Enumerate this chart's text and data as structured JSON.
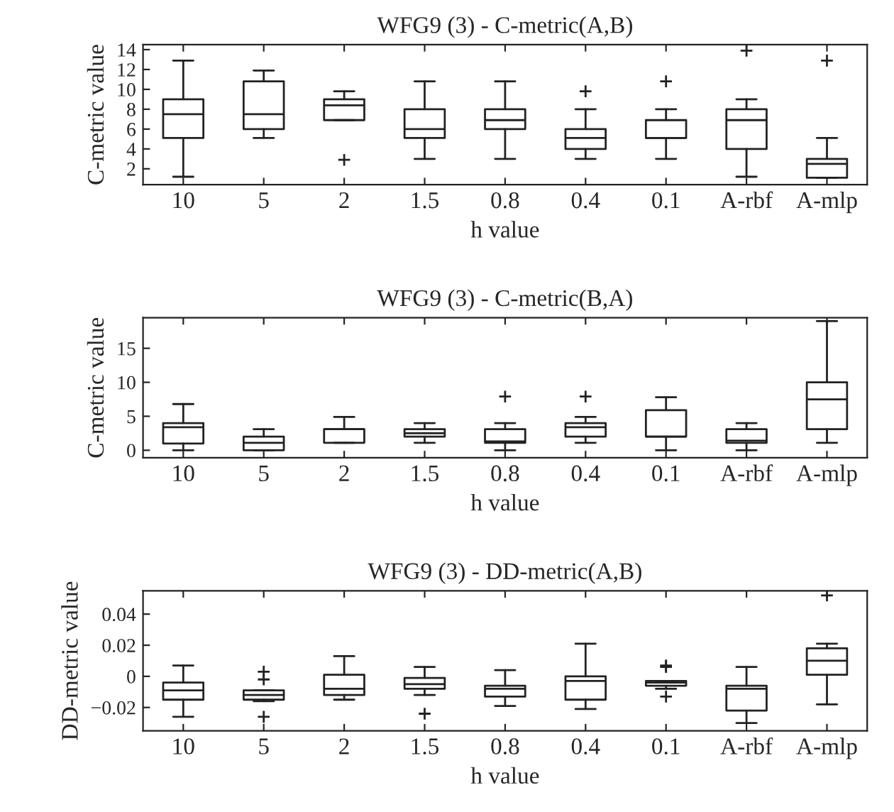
{
  "chart_data": [
    {
      "type": "box",
      "title": "WFG9 (3) - C-metric(A,B)",
      "xlabel": "h value",
      "ylabel": "C-metric value",
      "categories": [
        "10",
        "5",
        "2",
        "1.5",
        "0.8",
        "0.4",
        "0.1",
        "A-rbf",
        "A-mlp"
      ],
      "ylim": [
        0.4,
        14.5
      ],
      "yticks": [
        2,
        4,
        6,
        8,
        10,
        12,
        14
      ],
      "grid": false,
      "legend": false,
      "boxes": [
        {
          "low": 1.2,
          "q1": 5.1,
          "median": 7.5,
          "q3": 9.0,
          "high": 12.9
        },
        {
          "low": 5.1,
          "q1": 6.0,
          "median": 7.5,
          "q3": 10.8,
          "high": 11.9
        },
        {
          "low": 6.9,
          "q1": 6.9,
          "median": 8.4,
          "q3": 9.0,
          "high": 9.8,
          "outliers": [
            2.9
          ]
        },
        {
          "low": 3.0,
          "q1": 5.1,
          "median": 6.0,
          "q3": 8.0,
          "high": 10.8
        },
        {
          "low": 3.0,
          "q1": 6.0,
          "median": 6.9,
          "q3": 8.0,
          "high": 10.8
        },
        {
          "low": 3.0,
          "q1": 4.0,
          "median": 5.1,
          "q3": 6.0,
          "high": 8.0,
          "outliers": [
            9.8
          ]
        },
        {
          "low": 3.0,
          "q1": 5.1,
          "median": 5.1,
          "q3": 6.9,
          "high": 8.0,
          "outliers": [
            10.8
          ]
        },
        {
          "low": 1.2,
          "q1": 4.0,
          "median": 6.9,
          "q3": 8.0,
          "high": 9.0,
          "outliers": [
            13.9
          ]
        },
        {
          "low": 1.1,
          "q1": 1.1,
          "median": 2.5,
          "q3": 3.0,
          "high": 5.1,
          "outliers": [
            12.9
          ]
        }
      ]
    },
    {
      "type": "box",
      "title": "WFG9 (3) - C-metric(B,A)",
      "xlabel": "h value",
      "ylabel": "C-metric value",
      "categories": [
        "10",
        "5",
        "2",
        "1.5",
        "0.8",
        "0.4",
        "0.1",
        "A-rbf",
        "A-mlp"
      ],
      "ylim": [
        -1.1,
        19.5
      ],
      "yticks": [
        0,
        5,
        10,
        15
      ],
      "grid": false,
      "legend": false,
      "boxes": [
        {
          "low": 0,
          "q1": 1.0,
          "median": 3.4,
          "q3": 4.0,
          "high": 6.8
        },
        {
          "low": 0,
          "q1": 0,
          "median": 1.1,
          "q3": 2.0,
          "high": 3.1
        },
        {
          "low": 1.1,
          "q1": 1.1,
          "median": 3.1,
          "q3": 3.1,
          "high": 4.9
        },
        {
          "low": 1.1,
          "q1": 2.0,
          "median": 2.5,
          "q3": 3.1,
          "high": 4.0
        },
        {
          "low": 0,
          "q1": 1.1,
          "median": 1.3,
          "q3": 3.1,
          "high": 4.0,
          "outliers": [
            7.9
          ]
        },
        {
          "low": 1.1,
          "q1": 2.0,
          "median": 3.4,
          "q3": 4.0,
          "high": 4.9,
          "outliers": [
            7.9
          ]
        },
        {
          "low": 0,
          "q1": 2.0,
          "median": 2.0,
          "q3": 5.9,
          "high": 7.8
        },
        {
          "low": 0,
          "q1": 1.1,
          "median": 1.4,
          "q3": 3.1,
          "high": 4.0
        },
        {
          "low": 1.1,
          "q1": 3.1,
          "median": 7.5,
          "q3": 10.0,
          "high": 19.0
        }
      ]
    },
    {
      "type": "box",
      "title": "WFG9 (3) - DD-metric(A,B)",
      "xlabel": "h value",
      "ylabel": "DD-metric value",
      "categories": [
        "10",
        "5",
        "2",
        "1.5",
        "0.8",
        "0.4",
        "0.1",
        "A-rbf",
        "A-mlp"
      ],
      "ylim": [
        -0.035,
        0.055
      ],
      "yticks": [
        {
          "value": -0.02,
          "label": "−0.02"
        },
        0,
        0.02,
        0.04
      ],
      "grid": false,
      "legend": false,
      "boxes": [
        {
          "low": -0.026,
          "q1": -0.015,
          "median": -0.009,
          "q3": -0.004,
          "high": 0.007
        },
        {
          "low": -0.016,
          "q1": -0.015,
          "median": -0.012,
          "q3": -0.009,
          "high": -0.009,
          "outliers": [
            0.003,
            -0.002,
            -0.026
          ]
        },
        {
          "low": -0.015,
          "q1": -0.012,
          "median": -0.008,
          "q3": 0.001,
          "high": 0.013
        },
        {
          "low": -0.012,
          "q1": -0.008,
          "median": -0.005,
          "q3": -0.001,
          "high": 0.006,
          "outliers": [
            -0.024
          ]
        },
        {
          "low": -0.019,
          "q1": -0.013,
          "median": -0.008,
          "q3": -0.006,
          "high": 0.004
        },
        {
          "low": -0.021,
          "q1": -0.015,
          "median": -0.003,
          "q3": 0.0,
          "high": 0.021
        },
        {
          "low": -0.008,
          "q1": -0.006,
          "median": -0.004,
          "q3": -0.003,
          "high": -0.003,
          "outliers": [
            0.007,
            0.006,
            -0.013
          ]
        },
        {
          "low": -0.03,
          "q1": -0.022,
          "median": -0.008,
          "q3": -0.006,
          "high": 0.006
        },
        {
          "low": -0.018,
          "q1": 0.001,
          "median": 0.01,
          "q3": 0.018,
          "high": 0.021,
          "outliers": [
            0.052
          ]
        }
      ]
    }
  ]
}
